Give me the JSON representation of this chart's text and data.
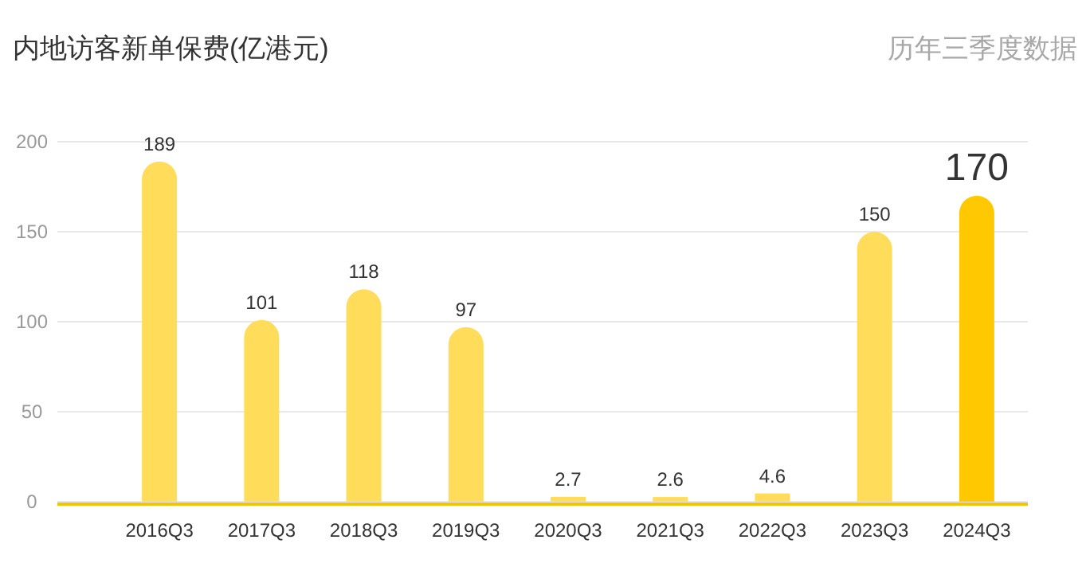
{
  "chart_data": {
    "type": "bar",
    "title": "内地访客新单保费(亿港元)",
    "subtitle": "历年三季度数据",
    "categories": [
      "2016Q3",
      "2017Q3",
      "2018Q3",
      "2019Q3",
      "2020Q3",
      "2021Q3",
      "2022Q3",
      "2023Q3",
      "2024Q3"
    ],
    "values": [
      189,
      101,
      118,
      97,
      2.7,
      2.6,
      4.6,
      150,
      170
    ],
    "colors": [
      "#ffdc5a",
      "#ffdc5a",
      "#ffdc5a",
      "#ffdc5a",
      "#ffdc5a",
      "#ffdc5a",
      "#ffdc5a",
      "#ffdc5a",
      "#ffc800"
    ],
    "ylim": [
      0,
      200
    ],
    "yticks": [
      0,
      50,
      100,
      150,
      200
    ],
    "grid": "y",
    "data_labels": true
  }
}
